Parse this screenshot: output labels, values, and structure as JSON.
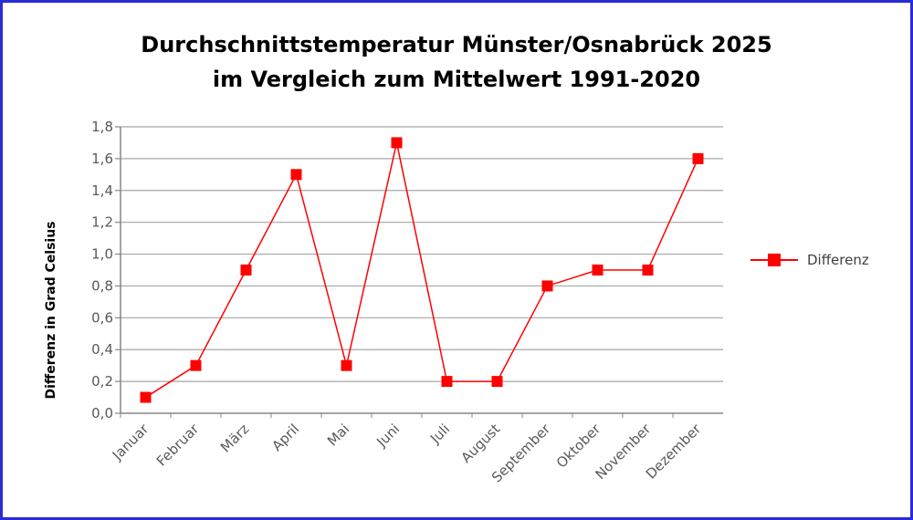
{
  "chart_data": {
    "type": "line",
    "title": "Durchschnittstemperatur Münster/Osnabrück 2025",
    "subtitle": "im Vergleich zum Mittelwert 1991-2020",
    "xlabel": "",
    "ylabel": "Differenz in Grad Celsius",
    "categories": [
      "Januar",
      "Februar",
      "März",
      "April",
      "Mai",
      "Juni",
      "Juli",
      "August",
      "September",
      "Oktober",
      "November",
      "Dezember"
    ],
    "series": [
      {
        "name": "Differenz",
        "color": "#ff0000",
        "marker": "square",
        "values": [
          0.1,
          0.3,
          0.9,
          1.5,
          0.3,
          1.7,
          0.2,
          0.2,
          0.8,
          0.9,
          0.9,
          1.6
        ]
      }
    ],
    "ylim": [
      0,
      1.8
    ],
    "yticks": [
      "0,0",
      "0,2",
      "0,4",
      "0,6",
      "0,8",
      "1,0",
      "1,2",
      "1,4",
      "1,6",
      "1,8"
    ],
    "grid": true,
    "legend": "right",
    "border_color": "#2a2ad6"
  }
}
